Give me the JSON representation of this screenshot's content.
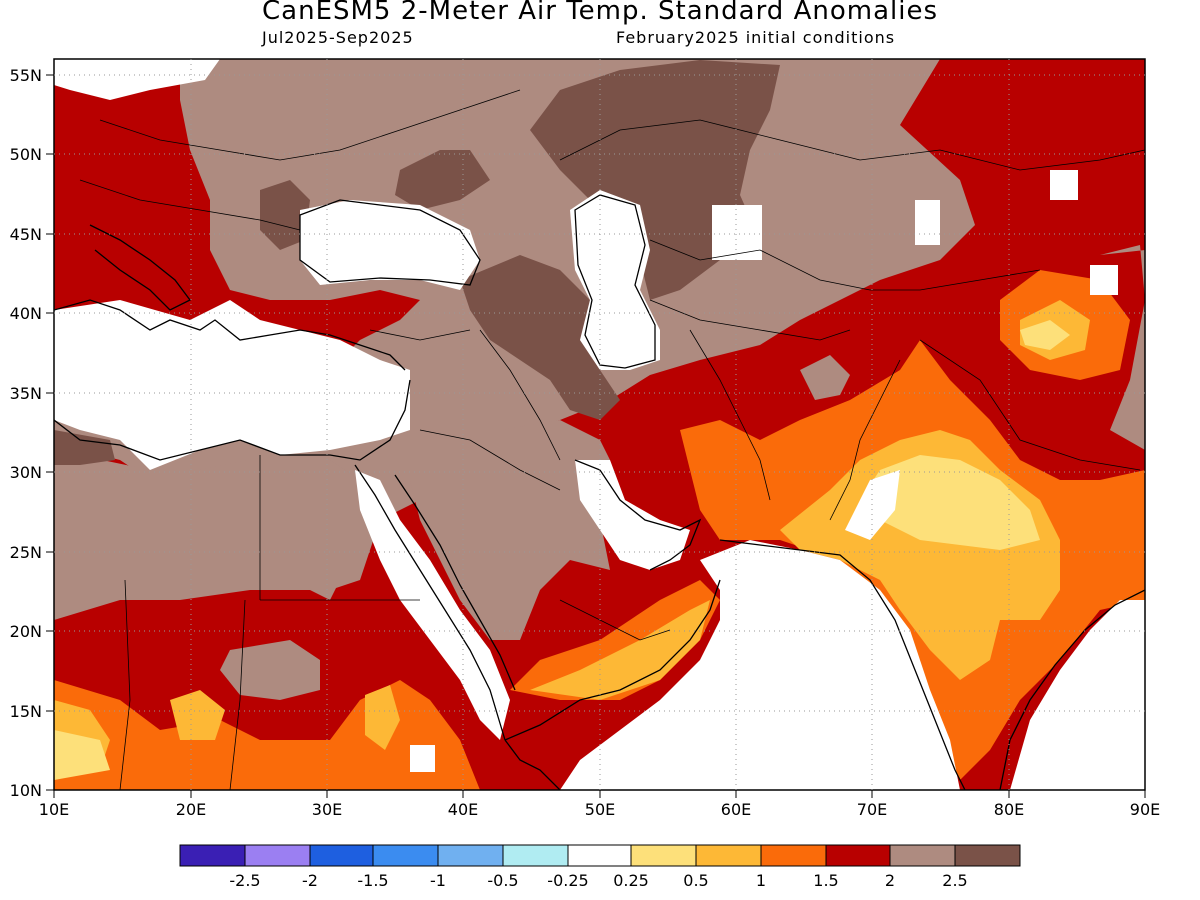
{
  "header": {
    "title": "CanESM5 2-Meter Air Temp. Standard Anomalies",
    "period": "Jul2025-Sep2025",
    "init": "February2025 initial conditions"
  },
  "map": {
    "lon_range": [
      10,
      90
    ],
    "lat_range": [
      10,
      56
    ],
    "x_ticks": [
      "10E",
      "20E",
      "30E",
      "40E",
      "50E",
      "60E",
      "70E",
      "80E",
      "90E"
    ],
    "y_ticks": [
      "10N",
      "15N",
      "20N",
      "25N",
      "30N",
      "35N",
      "40N",
      "45N",
      "50N",
      "55N"
    ],
    "grid": "dotted",
    "region": "Middle East, North/East Africa and South Asia"
  },
  "colorbar": {
    "labels": [
      "-2.5",
      "-2",
      "-1.5",
      "-1",
      "-0.5",
      "-0.25",
      "0.25",
      "0.5",
      "1",
      "1.5",
      "2",
      "2.5"
    ],
    "colors": [
      "#3a1fb4",
      "#9b7ff2",
      "#1e5fe0",
      "#3b8cf0",
      "#70b0f0",
      "#b0ecf2",
      "#ffffff",
      "#fde07a",
      "#fdb836",
      "#fa6b0a",
      "#b80000",
      "#ae8b80",
      "#7a5248"
    ]
  },
  "anomaly_colors": {
    "white": "#ffffff",
    "light_yellow": "#fde07a",
    "yellow_orange": "#fdb836",
    "orange": "#fa6b0a",
    "dark_red": "#b80000",
    "light_brown": "#ae8b80",
    "dark_brown": "#7a5248"
  }
}
